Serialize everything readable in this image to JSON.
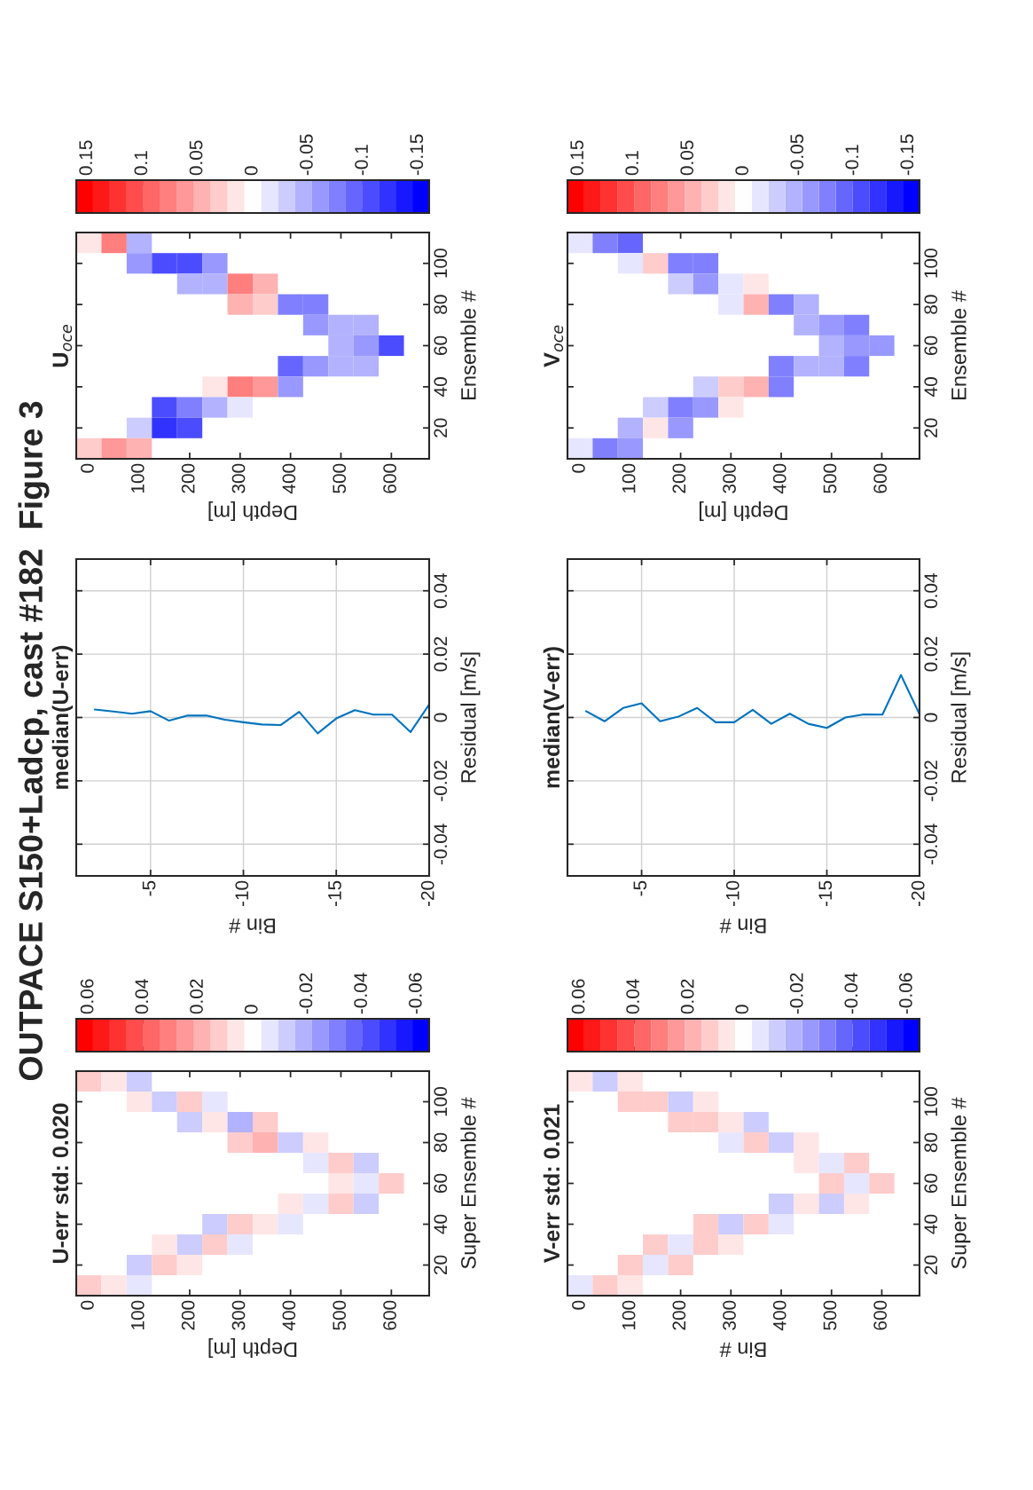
{
  "chart_data": [
    {
      "type": "heatmap",
      "title": "U-err std: 0.020",
      "xlabel": "Depth [m]",
      "ylabel": "Super Ensemble #",
      "annotations": [
        "OUTPACE S150+Ladcp, cast #182  Figure 3"
      ],
      "categories": [
        "0",
        null,
        "100",
        null,
        "200",
        null,
        "300",
        null,
        "400",
        null,
        "500",
        null,
        "600",
        null
      ],
      "y_categories": [
        null,
        "100",
        null,
        "80",
        null,
        "60",
        null,
        "40",
        null,
        "20",
        null
      ],
      "cells": [
        [
          0.01,
          0.005,
          -0.01,
          null,
          null,
          null,
          null,
          null,
          null,
          null,
          null,
          null,
          null,
          null
        ],
        [
          null,
          null,
          0.005,
          -0.015,
          0.01,
          -0.005,
          null,
          null,
          null,
          null,
          null,
          null,
          null,
          null
        ],
        [
          null,
          null,
          null,
          null,
          -0.01,
          0.005,
          -0.02,
          0.01,
          null,
          null,
          null,
          null,
          null,
          null
        ],
        [
          null,
          null,
          null,
          null,
          null,
          null,
          0.01,
          0.02,
          -0.015,
          0.005,
          null,
          null,
          null,
          null
        ],
        [
          null,
          null,
          null,
          null,
          null,
          null,
          null,
          null,
          null,
          -0.005,
          0.01,
          -0.01,
          null,
          null
        ],
        [
          null,
          null,
          null,
          null,
          null,
          null,
          null,
          null,
          null,
          null,
          0.005,
          -0.005,
          0.01,
          null
        ],
        [
          null,
          null,
          null,
          null,
          null,
          null,
          null,
          null,
          0.005,
          -0.005,
          0.01,
          -0.01,
          null,
          null
        ],
        [
          null,
          null,
          null,
          null,
          null,
          -0.01,
          0.015,
          0.005,
          -0.005,
          null,
          null,
          null,
          null,
          null
        ],
        [
          null,
          null,
          null,
          0.005,
          -0.01,
          0.015,
          -0.005,
          null,
          null,
          null,
          null,
          null,
          null,
          null
        ],
        [
          null,
          null,
          -0.01,
          0.01,
          0.005,
          null,
          null,
          null,
          null,
          null,
          null,
          null,
          null,
          null
        ],
        [
          0.01,
          0.005,
          -0.005,
          null,
          null,
          null,
          null,
          null,
          null,
          null,
          null,
          null,
          null,
          null
        ]
      ],
      "clim": [
        -0.0645,
        0.0645
      ],
      "cticks": [
        0.06,
        0.04,
        0.02,
        0,
        -0.02,
        -0.04,
        -0.06
      ]
    },
    {
      "type": "line",
      "title": "median(U-err)",
      "xlabel": "Bin #",
      "ylabel": "Residual [m/s]",
      "series": [
        {
          "color": "#0072bd",
          "x": [
            -2,
            -3,
            -4,
            -5,
            -6,
            -7,
            -8,
            -9,
            -10,
            -11,
            -12,
            -13,
            -14,
            -15,
            -16,
            -17,
            -18,
            -19,
            -20
          ],
          "values": [
            0.0025,
            0.0019,
            0.0012,
            0.002,
            -0.001,
            0.0006,
            0.0006,
            -0.0007,
            -0.0015,
            -0.0022,
            -0.0024,
            0.0018,
            -0.005,
            -0.0003,
            0.0023,
            0.0009,
            0.0009,
            -0.0046,
            0.0041
          ]
        }
      ],
      "xlim": [
        -1,
        -20
      ],
      "xticks": [
        -5,
        -10,
        -15,
        -20
      ],
      "ylim": [
        -0.05,
        0.05
      ],
      "yticks": [
        -0.04,
        -0.02,
        0,
        0.02,
        0.04
      ],
      "grid": true
    },
    {
      "type": "heatmap",
      "title": "U$_{oce}$",
      "xlabel": "Depth [m]",
      "ylabel": "Ensemble #",
      "categories": [
        "0",
        null,
        "100",
        null,
        "200",
        null,
        "300",
        null,
        "400",
        null,
        "500",
        null,
        "600",
        null
      ],
      "y_categories": [
        null,
        "100",
        null,
        "80",
        null,
        "60",
        null,
        "40",
        null,
        "20",
        null
      ],
      "cells": [
        [
          0.02,
          0.07,
          -0.05,
          null,
          null,
          null,
          null,
          null,
          null,
          null,
          null,
          null,
          null,
          null
        ],
        [
          null,
          null,
          -0.06,
          -0.11,
          -0.1,
          -0.06,
          null,
          null,
          null,
          null,
          null,
          null,
          null,
          null
        ],
        [
          null,
          null,
          null,
          null,
          -0.04,
          -0.05,
          0.08,
          0.04,
          null,
          null,
          null,
          null,
          null,
          null
        ],
        [
          null,
          null,
          null,
          null,
          null,
          null,
          0.04,
          0.03,
          -0.08,
          -0.07,
          null,
          null,
          null,
          null
        ],
        [
          null,
          null,
          null,
          null,
          null,
          null,
          null,
          null,
          null,
          -0.06,
          -0.04,
          -0.05,
          null,
          null
        ],
        [
          null,
          null,
          null,
          null,
          null,
          null,
          null,
          null,
          null,
          null,
          -0.05,
          -0.06,
          -0.1,
          null
        ],
        [
          null,
          null,
          null,
          null,
          null,
          null,
          null,
          null,
          -0.09,
          -0.06,
          -0.05,
          -0.04,
          null,
          null
        ],
        [
          null,
          null,
          null,
          null,
          null,
          0.01,
          0.08,
          0.06,
          -0.06,
          null,
          null,
          null,
          null,
          null
        ],
        [
          null,
          null,
          null,
          -0.1,
          -0.08,
          -0.04,
          -0.02,
          null,
          null,
          null,
          null,
          null,
          null,
          null
        ],
        [
          null,
          null,
          -0.03,
          -0.12,
          -0.1,
          null,
          null,
          null,
          null,
          null,
          null,
          null,
          null,
          null
        ],
        [
          0.03,
          0.06,
          0.05,
          null,
          null,
          null,
          null,
          null,
          null,
          null,
          null,
          null,
          null,
          null
        ]
      ],
      "clim": [
        -0.16,
        0.16
      ],
      "cticks": [
        0.15,
        0.1,
        0.05,
        0,
        -0.05,
        -0.1,
        -0.15
      ]
    },
    {
      "type": "heatmap",
      "title": "V-err std: 0.021",
      "xlabel": "Bin #",
      "ylabel": "Super Ensemble #",
      "categories": [
        "0",
        null,
        "100",
        null,
        "200",
        null,
        "300",
        null,
        "400",
        null,
        "500",
        null,
        "600",
        null
      ],
      "y_categories": [
        null,
        "100",
        null,
        "80",
        null,
        "60",
        null,
        "40",
        null,
        "20",
        null
      ],
      "cells": [
        [
          0.005,
          -0.01,
          0.005,
          null,
          null,
          null,
          null,
          null,
          null,
          null,
          null,
          null,
          null,
          null
        ],
        [
          null,
          null,
          0.01,
          0.015,
          -0.01,
          0.005,
          null,
          null,
          null,
          null,
          null,
          null,
          null,
          null
        ],
        [
          null,
          null,
          null,
          null,
          0.01,
          0.015,
          0.005,
          -0.01,
          null,
          null,
          null,
          null,
          null,
          null
        ],
        [
          null,
          null,
          null,
          null,
          null,
          null,
          -0.005,
          0.01,
          -0.01,
          0.005,
          null,
          null,
          null,
          null
        ],
        [
          null,
          null,
          null,
          null,
          null,
          null,
          null,
          null,
          null,
          0.005,
          -0.005,
          0.01,
          null,
          null
        ],
        [
          null,
          null,
          null,
          null,
          null,
          null,
          null,
          null,
          null,
          null,
          0.01,
          -0.005,
          0.015,
          null
        ],
        [
          null,
          null,
          null,
          null,
          null,
          null,
          null,
          null,
          -0.01,
          0.005,
          -0.01,
          0.005,
          null,
          null
        ],
        [
          null,
          null,
          null,
          null,
          null,
          0.015,
          -0.01,
          0.01,
          -0.005,
          null,
          null,
          null,
          null,
          null
        ],
        [
          null,
          null,
          null,
          0.01,
          -0.005,
          0.01,
          0.005,
          null,
          null,
          null,
          null,
          null,
          null,
          null
        ],
        [
          null,
          null,
          0.01,
          -0.005,
          0.01,
          null,
          null,
          null,
          null,
          null,
          null,
          null,
          null,
          null
        ],
        [
          -0.005,
          0.01,
          0.005,
          null,
          null,
          null,
          null,
          null,
          null,
          null,
          null,
          null,
          null,
          null
        ]
      ],
      "clim": [
        -0.0645,
        0.0645
      ],
      "cticks": [
        0.06,
        0.04,
        0.02,
        0,
        -0.02,
        -0.04,
        -0.06
      ]
    },
    {
      "type": "line",
      "title": "median(V-err)",
      "xlabel": "Bin #",
      "ylabel": "Residual [m/s]",
      "series": [
        {
          "color": "#0072bd",
          "x": [
            -2,
            -3,
            -4,
            -5,
            -6,
            -7,
            -8,
            -9,
            -10,
            -11,
            -12,
            -13,
            -14,
            -15,
            -16,
            -17,
            -18,
            -19,
            -20
          ],
          "values": [
            0.002,
            -0.0012,
            0.003,
            0.0045,
            -0.0012,
            0.0003,
            0.003,
            -0.0015,
            -0.0015,
            0.0024,
            -0.002,
            0.0012,
            -0.002,
            -0.0033,
            0.0,
            0.001,
            0.0009,
            0.0134,
            0.001
          ]
        }
      ],
      "xlim": [
        -1,
        -20
      ],
      "xticks": [
        -5,
        -10,
        -15,
        -20
      ],
      "ylim": [
        -0.05,
        0.05
      ],
      "yticks": [
        -0.04,
        -0.02,
        0,
        0.02,
        0.04
      ],
      "grid": true
    },
    {
      "type": "heatmap",
      "title": "V$_{oce}$",
      "xlabel": "Depth [m]",
      "ylabel": "Ensemble #",
      "categories": [
        "0",
        null,
        "100",
        null,
        "200",
        null,
        "300",
        null,
        "400",
        null,
        "500",
        null,
        "600",
        null
      ],
      "y_categories": [
        null,
        "100",
        null,
        "80",
        null,
        "60",
        null,
        "40",
        null,
        "20",
        null
      ],
      "cells": [
        [
          -0.02,
          -0.08,
          -0.09,
          null,
          null,
          null,
          null,
          null,
          null,
          null,
          null,
          null,
          null,
          null
        ],
        [
          null,
          null,
          -0.02,
          0.03,
          -0.07,
          -0.08,
          null,
          null,
          null,
          null,
          null,
          null,
          null,
          null
        ],
        [
          null,
          null,
          null,
          null,
          -0.03,
          -0.06,
          -0.02,
          0.01,
          null,
          null,
          null,
          null,
          null,
          null
        ],
        [
          null,
          null,
          null,
          null,
          null,
          null,
          -0.02,
          0.04,
          -0.08,
          -0.05,
          null,
          null,
          null,
          null
        ],
        [
          null,
          null,
          null,
          null,
          null,
          null,
          null,
          null,
          null,
          -0.04,
          -0.06,
          -0.08,
          null,
          null
        ],
        [
          null,
          null,
          null,
          null,
          null,
          null,
          null,
          null,
          null,
          null,
          -0.04,
          -0.06,
          -0.06,
          null
        ],
        [
          null,
          null,
          null,
          null,
          null,
          null,
          null,
          null,
          -0.07,
          -0.04,
          -0.05,
          -0.07,
          null,
          null
        ],
        [
          null,
          null,
          null,
          null,
          null,
          -0.03,
          0.03,
          0.05,
          -0.08,
          null,
          null,
          null,
          null,
          null
        ],
        [
          null,
          null,
          null,
          -0.03,
          -0.07,
          -0.06,
          0.01,
          null,
          null,
          null,
          null,
          null,
          null,
          null
        ],
        [
          null,
          null,
          -0.04,
          0.02,
          -0.06,
          null,
          null,
          null,
          null,
          null,
          null,
          null,
          null,
          null
        ],
        [
          -0.02,
          -0.08,
          -0.06,
          null,
          null,
          null,
          null,
          null,
          null,
          null,
          null,
          null,
          null,
          null
        ]
      ],
      "clim": [
        -0.16,
        0.16
      ],
      "cticks": [
        0.15,
        0.1,
        0.05,
        0,
        -0.05,
        -0.1,
        -0.15
      ]
    }
  ]
}
